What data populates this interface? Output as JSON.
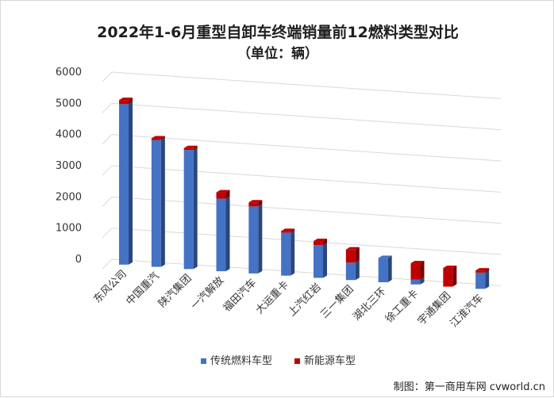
{
  "chart_data": {
    "type": "bar",
    "stacked": true,
    "title": "2022年1-6月重型自卸车终端销量前12燃料类型对比",
    "subtitle": "（单位：辆）",
    "xlabel": "",
    "ylabel": "",
    "ylim": [
      0,
      6000
    ],
    "yticks": [
      "0",
      "1000",
      "2000",
      "3000",
      "4000",
      "5000",
      "6000"
    ],
    "grid": true,
    "legend_position": "bottom",
    "categories": [
      "东风公司",
      "中国重汽",
      "陕汽集团",
      "一汽解放",
      "福田汽车",
      "大运重卡",
      "上汽红岩",
      "三一集团",
      "湖北三环",
      "徐工重卡",
      "宇通集团",
      "江淮汽车"
    ],
    "series": [
      {
        "name": "传统燃料车型",
        "color": "#4472c4",
        "values": [
          5150,
          4070,
          3820,
          2330,
          2150,
          1380,
          1050,
          560,
          780,
          160,
          0,
          520
        ]
      },
      {
        "name": "新能源车型",
        "color": "#c00000",
        "values": [
          130,
          50,
          60,
          200,
          130,
          50,
          130,
          420,
          0,
          520,
          600,
          70
        ]
      }
    ]
  },
  "credit": "制图：第一商用车网 cvworld.cn"
}
